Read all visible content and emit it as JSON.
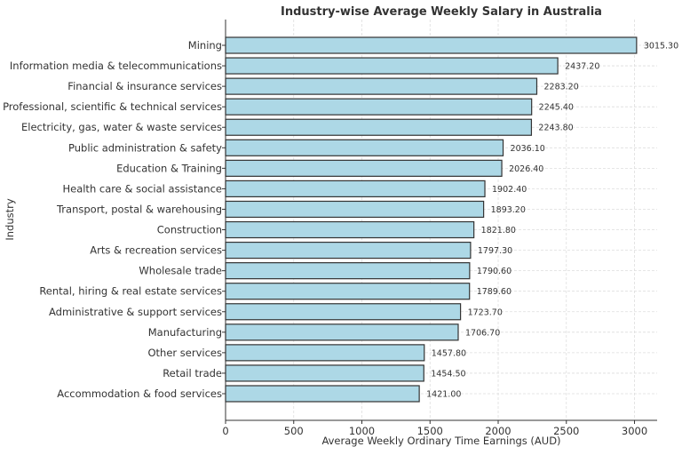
{
  "chart_data": {
    "type": "bar",
    "orientation": "horizontal",
    "title": "Industry-wise Average Weekly Salary in Australia",
    "xlabel": "Average Weekly Ordinary Time Earnings (AUD)",
    "ylabel": "Industry",
    "xlim": [
      0,
      3166
    ],
    "xticks": [
      0,
      500,
      1000,
      1500,
      2000,
      2500,
      3000
    ],
    "grid": true,
    "bar_color": "#add8e6",
    "edge_color": "#333333",
    "categories": [
      "Mining",
      "Information media & telecommunications",
      "Financial & insurance services",
      "Professional, scientific & technical services",
      "Electricity, gas, water & waste services",
      "Public administration & safety",
      "Education & Training",
      "Health care & social assistance",
      "Transport, postal & warehousing",
      "Construction",
      "Arts & recreation services",
      "Wholesale trade",
      "Rental, hiring & real estate services",
      "Administrative & support services",
      "Manufacturing",
      "Other services",
      "Retail trade",
      "Accommodation & food services"
    ],
    "values": [
      3015.3,
      2437.2,
      2283.2,
      2245.4,
      2243.8,
      2036.1,
      2026.4,
      1902.4,
      1893.2,
      1821.8,
      1797.3,
      1790.6,
      1789.6,
      1723.7,
      1706.7,
      1457.8,
      1454.5,
      1421.0
    ],
    "data_labels": [
      "3015.30",
      "2437.20",
      "2283.20",
      "2245.40",
      "2243.80",
      "2036.10",
      "2026.40",
      "1902.40",
      "1893.20",
      "1821.80",
      "1797.30",
      "1790.60",
      "1789.60",
      "1723.70",
      "1706.70",
      "1457.80",
      "1454.50",
      "1421.00"
    ]
  }
}
